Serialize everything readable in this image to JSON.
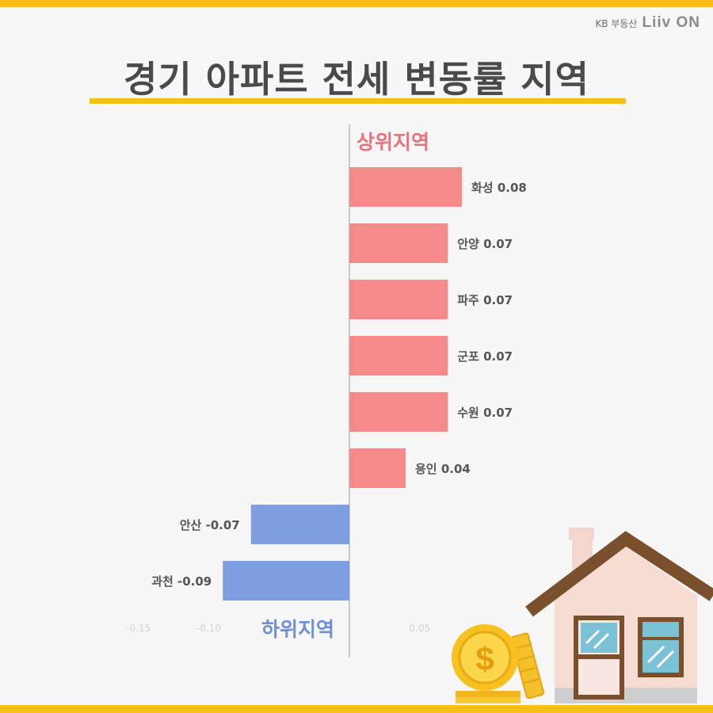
{
  "brand": {
    "kb_label": "KB 부동산",
    "liiv_label": "Liiv ON"
  },
  "title": "경기 아파트 전세 변동률 지역",
  "chart_data": {
    "type": "bar",
    "orientation": "horizontal",
    "groups": [
      {
        "label": "상위지역",
        "color": "#f58a8a",
        "items": [
          {
            "name": "화성",
            "value": 0.08,
            "label": "화성 0.08"
          },
          {
            "name": "안양",
            "value": 0.07,
            "label": "안양 0.07"
          },
          {
            "name": "파주",
            "value": 0.07,
            "label": "파주 0.07"
          },
          {
            "name": "군포",
            "value": 0.07,
            "label": "군포 0.07"
          },
          {
            "name": "수원",
            "value": 0.07,
            "label": "수원 0.07"
          },
          {
            "name": "용인",
            "value": 0.04,
            "label": "용인 0.04"
          }
        ]
      },
      {
        "label": "하위지역",
        "color": "#7f9ee0",
        "items": [
          {
            "name": "안산",
            "value": -0.07,
            "label": "안산 -0.07"
          },
          {
            "name": "과천",
            "value": -0.09,
            "label": "과천 -0.09"
          }
        ]
      }
    ],
    "xticks": [
      "-0.15",
      "-0.10",
      "0.05"
    ],
    "xtick_values": [
      -0.15,
      -0.1,
      0.05
    ],
    "xlim": [
      -0.1575,
      0.2825
    ],
    "grid": false,
    "legend": "none"
  },
  "colors": {
    "accent": "#fbbd1a",
    "top_group": "#e8727a",
    "bottom_group": "#6e90d6",
    "label_text": "#555555"
  },
  "illustration": {
    "coin_symbol": "$"
  }
}
